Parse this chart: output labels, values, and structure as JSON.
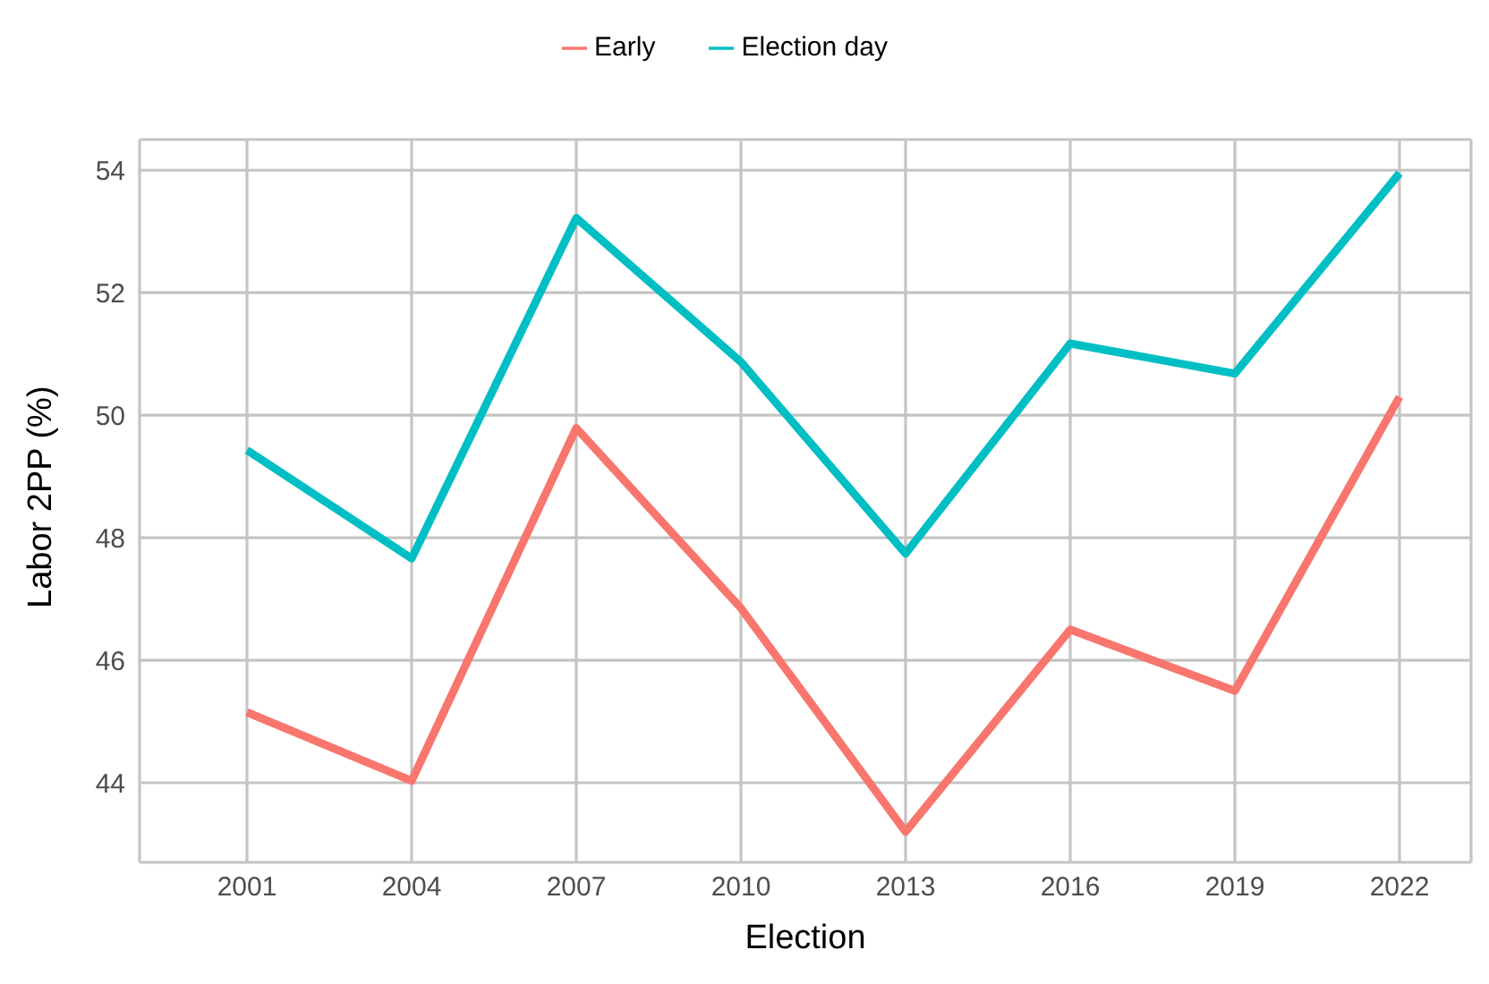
{
  "chart_data": {
    "type": "line",
    "xlabel": "Election",
    "ylabel": "Labor 2PP (%)",
    "categories": [
      "2001",
      "2004",
      "2007",
      "2010",
      "2013",
      "2016",
      "2019",
      "2022"
    ],
    "series": [
      {
        "name": "Early",
        "color": "#f8766d",
        "values": [
          45.15,
          44.03,
          49.79,
          46.85,
          43.2,
          46.5,
          45.5,
          50.3
        ]
      },
      {
        "name": "Election day",
        "color": "#00bfc4",
        "values": [
          49.43,
          47.66,
          53.22,
          50.87,
          47.74,
          51.17,
          50.68,
          53.95
        ]
      }
    ],
    "ylim": [
      42.7,
      54.5
    ],
    "yticks": [
      44,
      46,
      48,
      50,
      52,
      54
    ],
    "grid": true,
    "legend": "top",
    "marker": "none",
    "line_style": "solid"
  }
}
